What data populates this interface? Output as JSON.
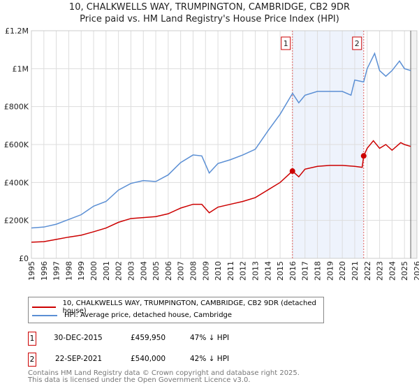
{
  "chart_data": {
    "type": "line",
    "title": "10, CHALKWELLS WAY, TRUMPINGTON, CAMBRIDGE, CB2 9DR",
    "subtitle": "Price paid vs. HM Land Registry's House Price Index (HPI)",
    "xlim": [
      1995,
      2026
    ],
    "ylim": [
      0,
      1200000
    ],
    "x_ticks": [
      "1995",
      "1996",
      "1997",
      "1998",
      "1999",
      "2000",
      "2001",
      "2002",
      "2003",
      "2004",
      "2005",
      "2006",
      "2007",
      "2008",
      "2009",
      "2010",
      "2011",
      "2012",
      "2013",
      "2014",
      "2015",
      "2016",
      "2017",
      "2018",
      "2019",
      "2020",
      "2021",
      "2022",
      "2023",
      "2024",
      "2025",
      "2026"
    ],
    "y_ticks": [
      {
        "v": 0,
        "label": "£0"
      },
      {
        "v": 200000,
        "label": "£200K"
      },
      {
        "v": 400000,
        "label": "£400K"
      },
      {
        "v": 600000,
        "label": "£600K"
      },
      {
        "v": 800000,
        "label": "£800K"
      },
      {
        "v": 1000000,
        "label": "£1M"
      },
      {
        "v": 1200000,
        "label": "£1.2M"
      }
    ],
    "grid": true,
    "shaded_range": [
      2015.99,
      2021.72
    ],
    "series": [
      {
        "name": "10, CHALKWELLS WAY, TRUMPINGTON, CAMBRIDGE, CB2 9DR (detached house)",
        "color": "#cc0000",
        "x": [
          1995,
          1996,
          1997,
          1998,
          1999,
          2000,
          2001,
          2002,
          2003,
          2004,
          2005,
          2006,
          2007,
          2008,
          2008.7,
          2009.3,
          2010,
          2011,
          2012,
          2013,
          2014,
          2015,
          2015.99,
          2016.5,
          2017,
          2018,
          2019,
          2020,
          2021,
          2021.6,
          2021.72,
          2022,
          2022.5,
          2023,
          2023.5,
          2024,
          2024.7,
          2025,
          2025.5
        ],
        "y": [
          85000,
          88000,
          100000,
          112000,
          122000,
          140000,
          160000,
          190000,
          210000,
          215000,
          220000,
          235000,
          265000,
          285000,
          285000,
          240000,
          270000,
          285000,
          300000,
          320000,
          360000,
          400000,
          459950,
          430000,
          470000,
          485000,
          490000,
          490000,
          485000,
          480000,
          540000,
          580000,
          620000,
          580000,
          600000,
          570000,
          610000,
          600000,
          590000
        ]
      },
      {
        "name": "HPI: Average price, detached house, Cambridge",
        "color": "#5b8fd4",
        "x": [
          1995,
          1996,
          1997,
          1998,
          1999,
          2000,
          2001,
          2002,
          2003,
          2004,
          2005,
          2006,
          2007,
          2008,
          2008.7,
          2009.3,
          2010,
          2011,
          2012,
          2013,
          2014,
          2015,
          2016,
          2016.5,
          2017,
          2018,
          2019,
          2020,
          2020.7,
          2021,
          2021.72,
          2022,
          2022.6,
          2023,
          2023.5,
          2024,
          2024.6,
          2025,
          2025.5
        ],
        "y": [
          160000,
          165000,
          180000,
          205000,
          230000,
          275000,
          300000,
          360000,
          395000,
          410000,
          405000,
          440000,
          505000,
          545000,
          540000,
          450000,
          500000,
          520000,
          545000,
          575000,
          670000,
          760000,
          870000,
          820000,
          860000,
          880000,
          880000,
          880000,
          860000,
          940000,
          930000,
          1000000,
          1080000,
          990000,
          960000,
          990000,
          1040000,
          1000000,
          990000
        ]
      }
    ],
    "markers": [
      {
        "label": "1",
        "x": 2015.99,
        "y": 459950
      },
      {
        "label": "2",
        "x": 2021.72,
        "y": 540000
      }
    ]
  },
  "legend": {
    "red": "10, CHALKWELLS WAY, TRUMPINGTON, CAMBRIDGE, CB2 9DR (detached house)",
    "blue": "HPI: Average price, detached house, Cambridge"
  },
  "transactions": [
    {
      "num": "1",
      "date": "30-DEC-2015",
      "price": "£459,950",
      "hpi": "47% ↓ HPI"
    },
    {
      "num": "2",
      "date": "22-SEP-2021",
      "price": "£540,000",
      "hpi": "42% ↓ HPI"
    }
  ],
  "footer": [
    "Contains HM Land Registry data © Crown copyright and database right 2025.",
    "This data is licensed under the Open Government Licence v3.0."
  ]
}
